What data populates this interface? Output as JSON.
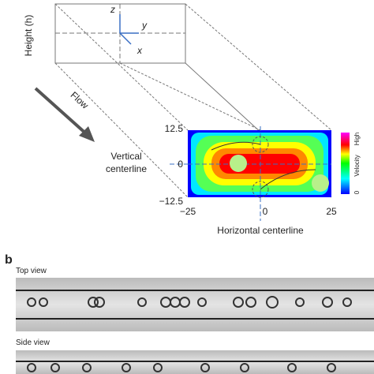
{
  "axes3d": {
    "z": "z",
    "y": "y",
    "x": "x",
    "height": "Height (h)",
    "flow": "Flow"
  },
  "heatmap": {
    "vertical_label": [
      "Vertical",
      "centerline"
    ],
    "horizontal_label": "Horizontal centerline",
    "yticks": [
      "12.5",
      "0",
      "−12.5"
    ],
    "xticks": [
      "−25",
      "0",
      "25"
    ],
    "colorbar": {
      "high": "High",
      "label": "Velocity",
      "low": "0"
    }
  },
  "panel_b": {
    "label": "b",
    "top": "Top view",
    "side": "Side view"
  }
}
